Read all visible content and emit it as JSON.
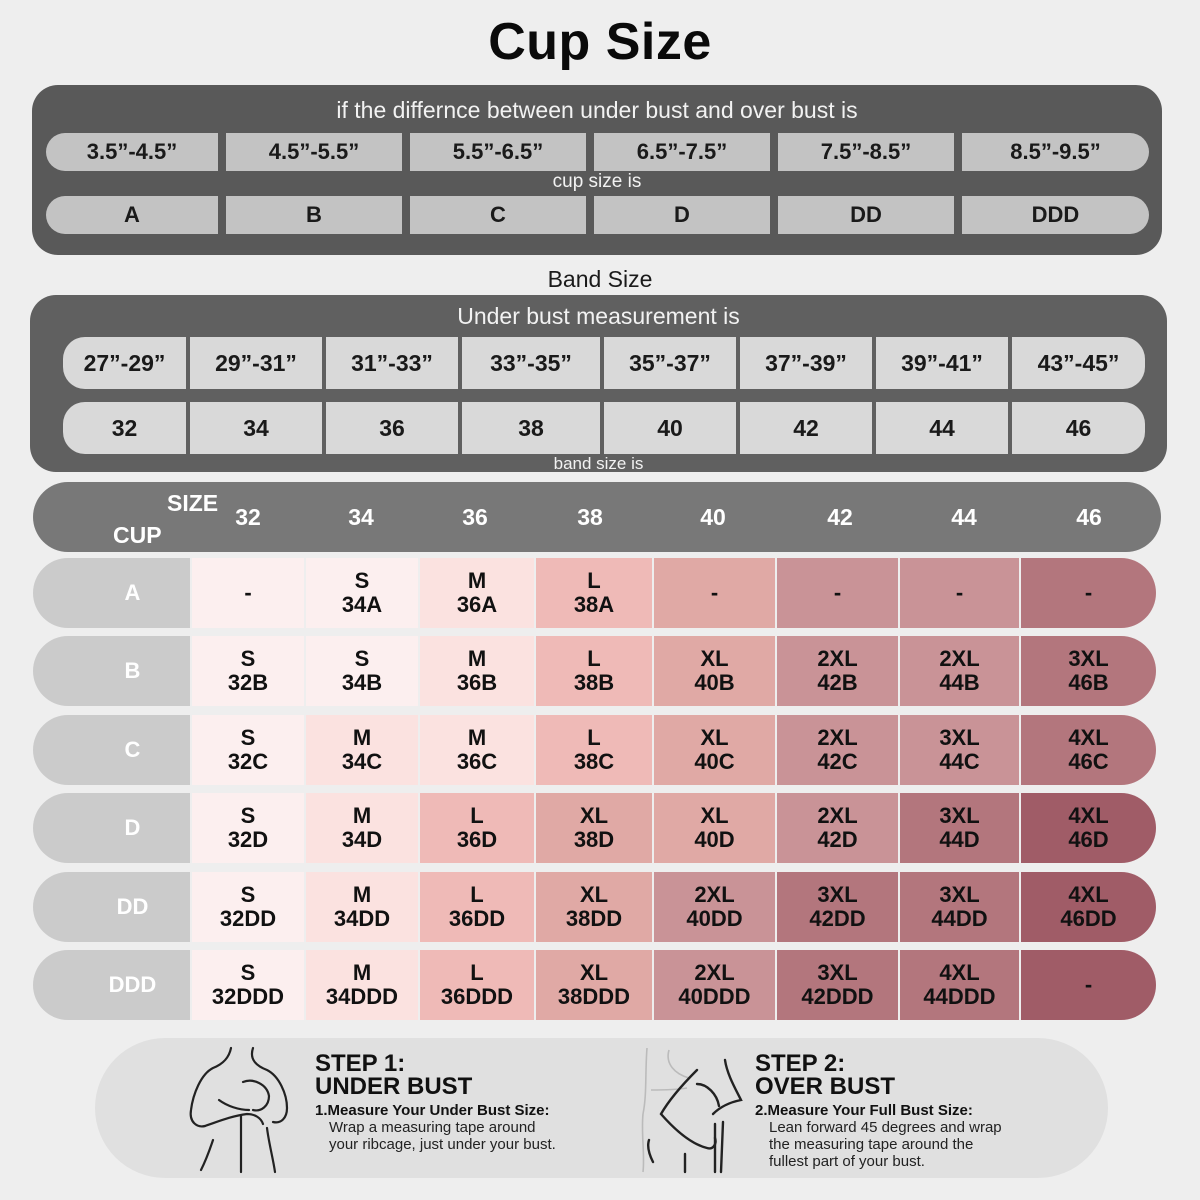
{
  "title": "Cup Size",
  "cup_panel": {
    "caption": "if the differnce between under bust and over bust is",
    "mid_caption": "cup size is",
    "differences": [
      "3.5”-4.5”",
      "4.5”-5.5”",
      "5.5”-6.5”",
      "6.5”-7.5”",
      "7.5”-8.5”",
      "8.5”-9.5”"
    ],
    "cups": [
      "A",
      "B",
      "C",
      "D",
      "DD",
      "DDD"
    ]
  },
  "band_panel": {
    "title": "Band Size",
    "caption": "Under bust measurement is",
    "bottom_caption": "band size is",
    "measurements": [
      "27”-29”",
      "29”-31”",
      "31”-33”",
      "33”-35”",
      "35”-37”",
      "37”-39”",
      "39”-41”",
      "43”-45”"
    ],
    "bands": [
      "32",
      "34",
      "36",
      "38",
      "40",
      "42",
      "44",
      "46"
    ]
  },
  "size_table": {
    "header_size_label": "SIZE",
    "header_cup_label": "CUP",
    "columns": [
      "32",
      "34",
      "36",
      "38",
      "40",
      "42",
      "44",
      "46"
    ],
    "rows": [
      {
        "cup": "A",
        "cells": [
          {
            "size": "",
            "code": "-",
            "level": 0
          },
          {
            "size": "S",
            "code": "34A",
            "level": 0
          },
          {
            "size": "M",
            "code": "36A",
            "level": 1
          },
          {
            "size": "L",
            "code": "38A",
            "level": 2
          },
          {
            "size": "",
            "code": "-",
            "level": 3
          },
          {
            "size": "",
            "code": "-",
            "level": 4
          },
          {
            "size": "",
            "code": "-",
            "level": 4
          },
          {
            "size": "",
            "code": "-",
            "level": 5
          }
        ]
      },
      {
        "cup": "B",
        "cells": [
          {
            "size": "S",
            "code": "32B",
            "level": 0
          },
          {
            "size": "S",
            "code": "34B",
            "level": 0
          },
          {
            "size": "M",
            "code": "36B",
            "level": 1
          },
          {
            "size": "L",
            "code": "38B",
            "level": 2
          },
          {
            "size": "XL",
            "code": "40B",
            "level": 3
          },
          {
            "size": "2XL",
            "code": "42B",
            "level": 4
          },
          {
            "size": "2XL",
            "code": "44B",
            "level": 4
          },
          {
            "size": "3XL",
            "code": "46B",
            "level": 5
          }
        ]
      },
      {
        "cup": "C",
        "cells": [
          {
            "size": "S",
            "code": "32C",
            "level": 0
          },
          {
            "size": "M",
            "code": "34C",
            "level": 1
          },
          {
            "size": "M",
            "code": "36C",
            "level": 1
          },
          {
            "size": "L",
            "code": "38C",
            "level": 2
          },
          {
            "size": "XL",
            "code": "40C",
            "level": 3
          },
          {
            "size": "2XL",
            "code": "42C",
            "level": 4
          },
          {
            "size": "3XL",
            "code": "44C",
            "level": 4
          },
          {
            "size": "4XL",
            "code": "46C",
            "level": 5
          }
        ]
      },
      {
        "cup": "D",
        "cells": [
          {
            "size": "S",
            "code": "32D",
            "level": 0
          },
          {
            "size": "M",
            "code": "34D",
            "level": 1
          },
          {
            "size": "L",
            "code": "36D",
            "level": 2
          },
          {
            "size": "XL",
            "code": "38D",
            "level": 3
          },
          {
            "size": "XL",
            "code": "40D",
            "level": 3
          },
          {
            "size": "2XL",
            "code": "42D",
            "level": 4
          },
          {
            "size": "3XL",
            "code": "44D",
            "level": 5
          },
          {
            "size": "4XL",
            "code": "46D",
            "level": 6
          }
        ]
      },
      {
        "cup": "DD",
        "cells": [
          {
            "size": "S",
            "code": "32DD",
            "level": 0
          },
          {
            "size": "M",
            "code": "34DD",
            "level": 1
          },
          {
            "size": "L",
            "code": "36DD",
            "level": 2
          },
          {
            "size": "XL",
            "code": "38DD",
            "level": 3
          },
          {
            "size": "2XL",
            "code": "40DD",
            "level": 4
          },
          {
            "size": "3XL",
            "code": "42DD",
            "level": 5
          },
          {
            "size": "3XL",
            "code": "44DD",
            "level": 5
          },
          {
            "size": "4XL",
            "code": "46DD",
            "level": 6
          }
        ]
      },
      {
        "cup": "DDD",
        "cells": [
          {
            "size": "S",
            "code": "32DDD",
            "level": 0
          },
          {
            "size": "M",
            "code": "34DDD",
            "level": 1
          },
          {
            "size": "L",
            "code": "36DDD",
            "level": 2
          },
          {
            "size": "XL",
            "code": "38DDD",
            "level": 3
          },
          {
            "size": "2XL",
            "code": "40DDD",
            "level": 4
          },
          {
            "size": "3XL",
            "code": "42DDD",
            "level": 5
          },
          {
            "size": "4XL",
            "code": "44DDD",
            "level": 5
          },
          {
            "size": "",
            "code": "-",
            "level": 6
          }
        ]
      }
    ],
    "colors": {
      "header_bg": "#787878",
      "cup_label_bg": "#cbcbcb",
      "levels": [
        "#fcefef",
        "#fbe2e0",
        "#efbab7",
        "#e0a9a5",
        "#c99397",
        "#b3767d",
        "#a05c67"
      ]
    }
  },
  "steps": [
    {
      "icon": "under-bust-figure",
      "title_line1": "STEP 1:",
      "title_line2": "UNDER BUST",
      "subtitle": "1.Measure Your Under Bust Size:",
      "desc_lines": [
        "Wrap a measuring tape around",
        "your ribcage, just under your bust."
      ]
    },
    {
      "icon": "over-bust-figure",
      "title_line1": "STEP 2:",
      "title_line2": "OVER BUST",
      "subtitle": "2.Measure Your Full Bust Size:",
      "desc_lines": [
        "Lean forward 45 degrees and wrap",
        "the measuring tape around the",
        "fullest part of your bust."
      ]
    }
  ]
}
